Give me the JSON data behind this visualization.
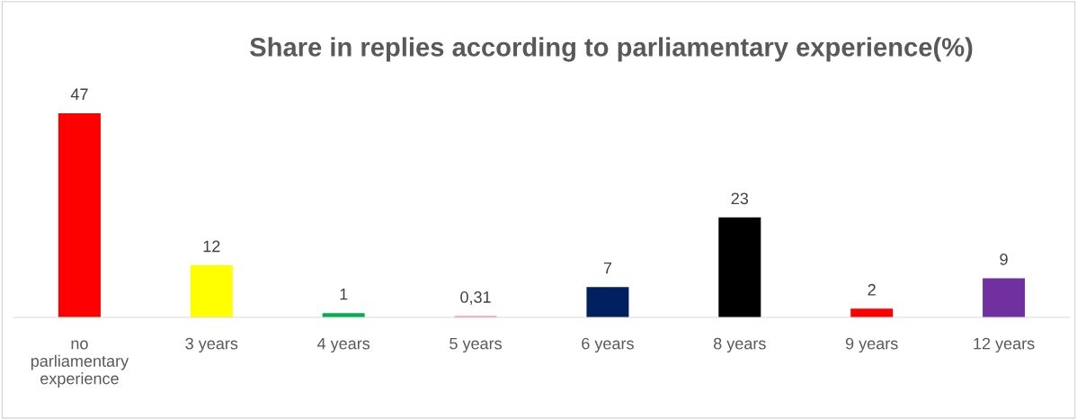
{
  "chart_data": {
    "type": "bar",
    "title": "Share in replies according to parliamentary experience(%)",
    "categories": [
      "no parliamentary experience",
      "3 years",
      "4 years",
      "5 years",
      "6 years",
      "8 years",
      "9 years",
      "12 years"
    ],
    "values": [
      47,
      12,
      1,
      0.31,
      7,
      23,
      2,
      9
    ],
    "colors": [
      "#ff0000",
      "#ffff00",
      "#00b050",
      "#ff7c80",
      "#002060",
      "#000000",
      "#ff0000",
      "#7030a0"
    ],
    "value_labels": [
      "47",
      "12",
      "1",
      "0,31",
      "7",
      "23",
      "2",
      "9"
    ],
    "grid": false,
    "legend": false
  }
}
